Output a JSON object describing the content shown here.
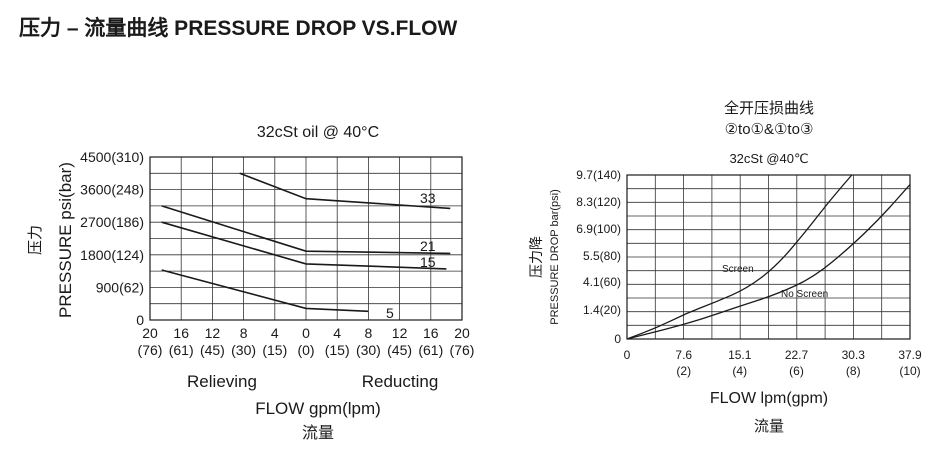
{
  "header": {
    "title": "压力 – 流量曲线 PRESSURE DROP VS.FLOW"
  },
  "chart_data": [
    {
      "type": "line",
      "title": "32cSt  oil @ 40°C",
      "ylabel": "PRESSURE psi(bar)",
      "ylabel_cn": "压力",
      "xlabel": "FLOW gpm(lpm)",
      "xlabel_cn": "流量",
      "xlim": [
        -20,
        20
      ],
      "ylim": [
        0,
        4500
      ],
      "grid": true,
      "x_sections": [
        "Relieving",
        "Reducting"
      ],
      "x_ticks": [
        {
          "x": -20,
          "gpm": "20",
          "lpm": "(76)"
        },
        {
          "x": -16,
          "gpm": "16",
          "lpm": "(61)"
        },
        {
          "x": -12,
          "gpm": "12",
          "lpm": "(45)"
        },
        {
          "x": -8,
          "gpm": "8",
          "lpm": "(30)"
        },
        {
          "x": -4,
          "gpm": "4",
          "lpm": "(15)"
        },
        {
          "x": 0,
          "gpm": "0",
          "lpm": "(0)"
        },
        {
          "x": 4,
          "gpm": "4",
          "lpm": "(15)"
        },
        {
          "x": 8,
          "gpm": "8",
          "lpm": "(30)"
        },
        {
          "x": 12,
          "gpm": "12",
          "lpm": "(45)"
        },
        {
          "x": 16,
          "gpm": "16",
          "lpm": "(61)"
        },
        {
          "x": 20,
          "gpm": "20",
          "lpm": "(76)"
        }
      ],
      "y_ticks": [
        {
          "y": 0,
          "label": "0"
        },
        {
          "y": 900,
          "label": "900(62)"
        },
        {
          "y": 1800,
          "label": "1800(124)"
        },
        {
          "y": 2700,
          "label": "2700(186)"
        },
        {
          "y": 3600,
          "label": "3600(248)"
        },
        {
          "y": 4500,
          "label": "4500(310)"
        }
      ],
      "series": [
        {
          "name": "33",
          "x": [
            -8.5,
            0,
            18.5
          ],
          "y": [
            4050,
            3350,
            3080
          ]
        },
        {
          "name": "21",
          "x": [
            -18.5,
            0,
            18.5
          ],
          "y": [
            3150,
            1900,
            1840
          ]
        },
        {
          "name": "15",
          "x": [
            -18.5,
            0,
            18
          ],
          "y": [
            2700,
            1550,
            1410
          ]
        },
        {
          "name": "5",
          "x": [
            -18.5,
            0,
            8
          ],
          "y": [
            1380,
            320,
            240
          ]
        }
      ]
    },
    {
      "type": "line",
      "title": "全开压损曲线",
      "subtitle": "②to①&①to③",
      "oil_note": "32cSt @40℃",
      "ylabel": "PRESSURE DROP  bar(psi)",
      "ylabel_cn": "压力降",
      "xlabel": "FLOW   lpm(gpm)",
      "xlabel_cn": "流量",
      "xlim": [
        0,
        37.9
      ],
      "ylim": [
        0,
        9.7
      ],
      "grid": true,
      "x_ticks": [
        {
          "x": 0,
          "lpm": "0",
          "gpm": ""
        },
        {
          "x": 7.6,
          "lpm": "7.6",
          "gpm": "(2)"
        },
        {
          "x": 15.1,
          "lpm": "15.1",
          "gpm": "(4)"
        },
        {
          "x": 22.7,
          "lpm": "22.7",
          "gpm": "(6)"
        },
        {
          "x": 30.3,
          "lpm": "30.3",
          "gpm": "(8)"
        },
        {
          "x": 37.9,
          "lpm": "37.9",
          "gpm": "(10)"
        }
      ],
      "y_ticks": [
        {
          "y": 0,
          "label": "0"
        },
        {
          "y": 1.4,
          "label": "1.4(20)"
        },
        {
          "y": 4.1,
          "label": "4.1(60)"
        },
        {
          "y": 5.5,
          "label": "5.5(80)"
        },
        {
          "y": 6.9,
          "label": "6.9(100)"
        },
        {
          "y": 8.3,
          "label": "8.3(120)"
        },
        {
          "y": 9.7,
          "label": "9.7(140)"
        }
      ],
      "series": [
        {
          "name": "Screen",
          "x": [
            0,
            4,
            8,
            12,
            16,
            20,
            24,
            27,
            30.1
          ],
          "y": [
            0,
            0.55,
            1.25,
            2.2,
            3.45,
            4.95,
            6.8,
            8.3,
            9.7
          ]
        },
        {
          "name": "No Screen",
          "x": [
            0,
            5,
            10,
            15,
            20,
            25,
            30,
            34,
            37.9
          ],
          "y": [
            0,
            0.45,
            0.95,
            1.75,
            2.9,
            4.35,
            6.0,
            7.5,
            9.2
          ]
        }
      ]
    }
  ]
}
